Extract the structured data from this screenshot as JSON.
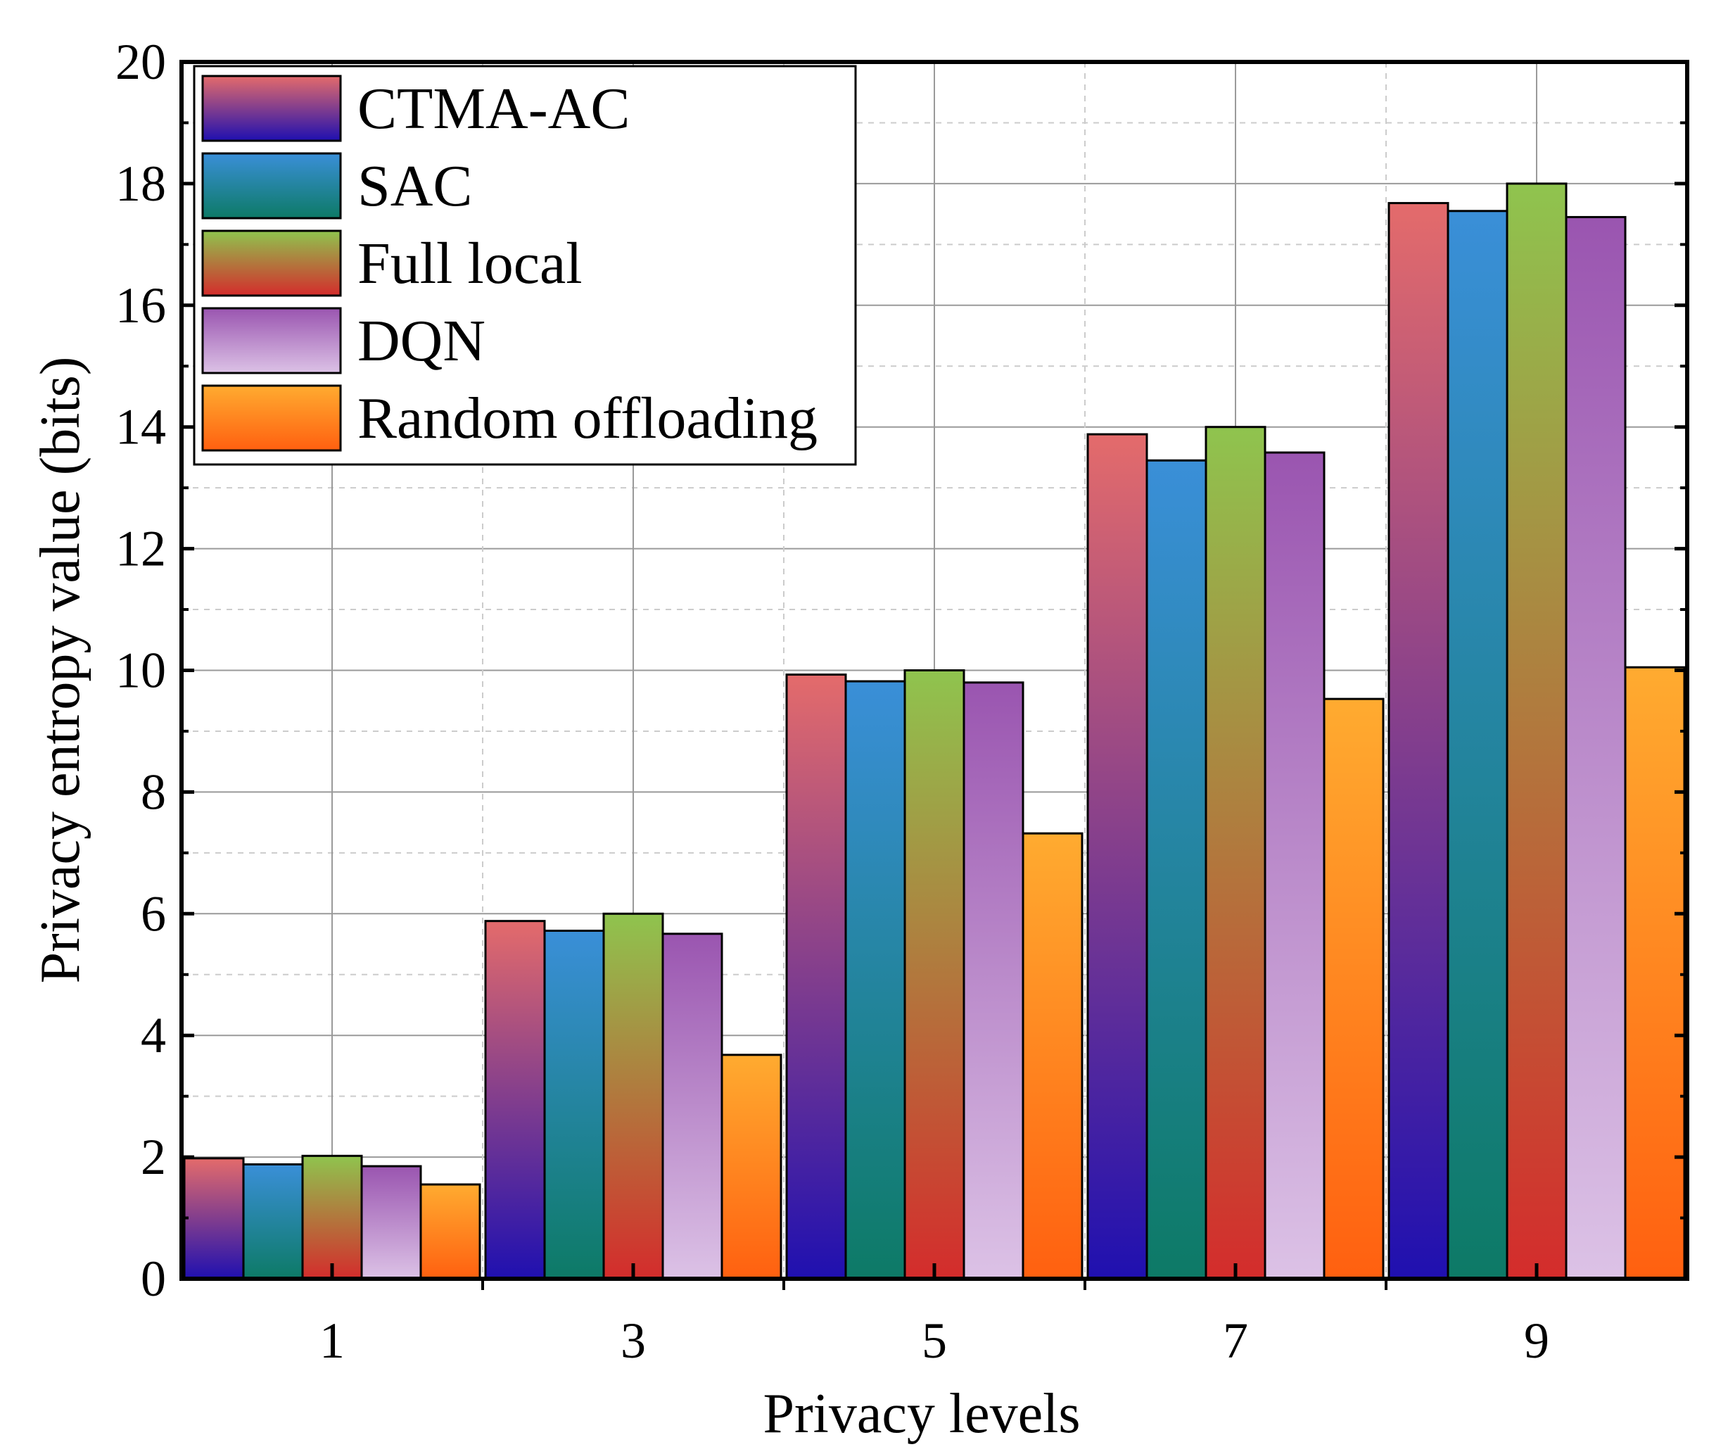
{
  "chart_data": {
    "type": "bar",
    "xlabel": "Privacy levels",
    "ylabel": "Privacy entropy value (bits)",
    "categories": [
      "1",
      "3",
      "5",
      "7",
      "9"
    ],
    "ylim": [
      0,
      20
    ],
    "yticks": [
      0,
      2,
      4,
      6,
      8,
      10,
      12,
      14,
      16,
      18,
      20
    ],
    "grid": true,
    "legend_position": "top-left",
    "series": [
      {
        "name": "CTMA-AC",
        "values": [
          1.98,
          5.88,
          9.93,
          13.88,
          17.68
        ],
        "colors": [
          "#e46b6b",
          "#1f10b0"
        ]
      },
      {
        "name": "SAC",
        "values": [
          1.88,
          5.72,
          9.82,
          13.45,
          17.55
        ],
        "colors": [
          "#3a8fd8",
          "#0d7a66"
        ]
      },
      {
        "name": "Full local",
        "values": [
          2.02,
          6.0,
          10.0,
          14.0,
          18.0
        ],
        "colors": [
          "#8fc44e",
          "#d42c2c"
        ]
      },
      {
        "name": "DQN",
        "values": [
          1.85,
          5.67,
          9.8,
          13.58,
          17.45
        ],
        "colors": [
          "#9a55b0",
          "#dcc2e6"
        ]
      },
      {
        "name": "Random offloading",
        "values": [
          1.55,
          3.68,
          7.32,
          9.53,
          10.05
        ],
        "colors": [
          "#ffab30",
          "#ff6010"
        ]
      }
    ]
  }
}
